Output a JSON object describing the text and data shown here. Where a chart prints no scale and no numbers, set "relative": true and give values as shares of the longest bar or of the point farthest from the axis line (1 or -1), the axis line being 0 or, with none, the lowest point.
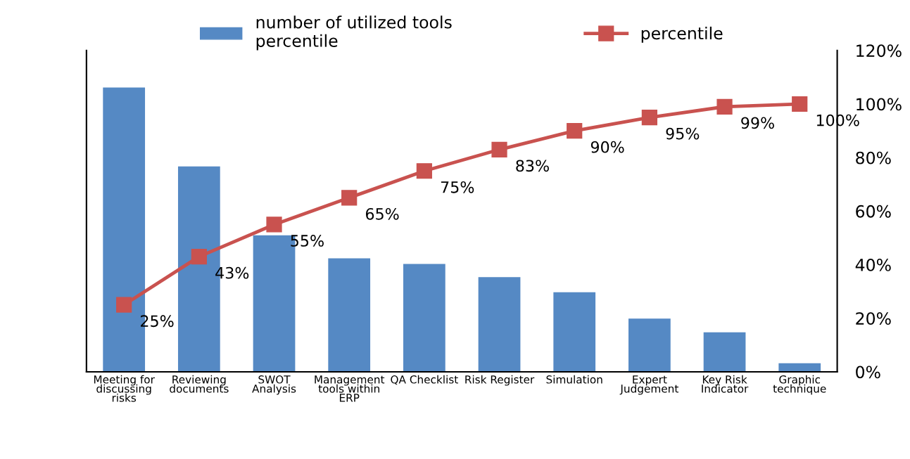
{
  "chart_data": [
    {
      "type": "bar",
      "relative": true,
      "categories": [
        "Meeting for\ndiscussing\nrisks",
        "Reviewing\ndocuments",
        "SWOT\nAnalysis",
        "Management\ntools within\nERP",
        "QA Checklist",
        "Risk Register",
        "Simulation",
        "Expert\nJudgement",
        "Key Risk\nIndicator",
        "Graphic\ntechnique"
      ],
      "series": [
        {
          "name": "number of utilized tools\npercentile",
          "color": "#5589c4",
          "values": [
            1,
            0.722,
            0.48,
            0.399,
            0.379,
            0.333,
            0.28,
            0.187,
            0.139,
            0.03
          ]
        }
      ],
      "grid": false,
      "legend": "top"
    },
    {
      "type": "line",
      "categories": [
        null,
        null,
        null,
        null,
        null,
        null,
        null,
        null,
        null,
        null
      ],
      "series": [
        {
          "name": "percentile",
          "color": "#c9524f",
          "values": [
            25,
            43,
            55,
            65,
            75,
            83,
            90,
            95,
            99,
            100
          ],
          "value_labels": [
            "25%",
            "43%",
            "55%",
            "65%",
            "75%",
            "83%",
            "90%",
            "95%",
            "99%",
            "100%"
          ]
        }
      ],
      "marker": "square",
      "ylim": [
        0,
        120
      ],
      "yticks": [
        {
          "value": 0,
          "label": "0%"
        },
        {
          "value": 20,
          "label": "20%"
        },
        {
          "value": 40,
          "label": "40%"
        },
        {
          "value": 60,
          "label": "60%"
        },
        {
          "value": 80,
          "label": "80%"
        },
        {
          "value": 100,
          "label": "100%"
        },
        {
          "value": 120,
          "label": "120%"
        }
      ],
      "tick_labels": "y",
      "grid": false,
      "legend": "top"
    }
  ]
}
